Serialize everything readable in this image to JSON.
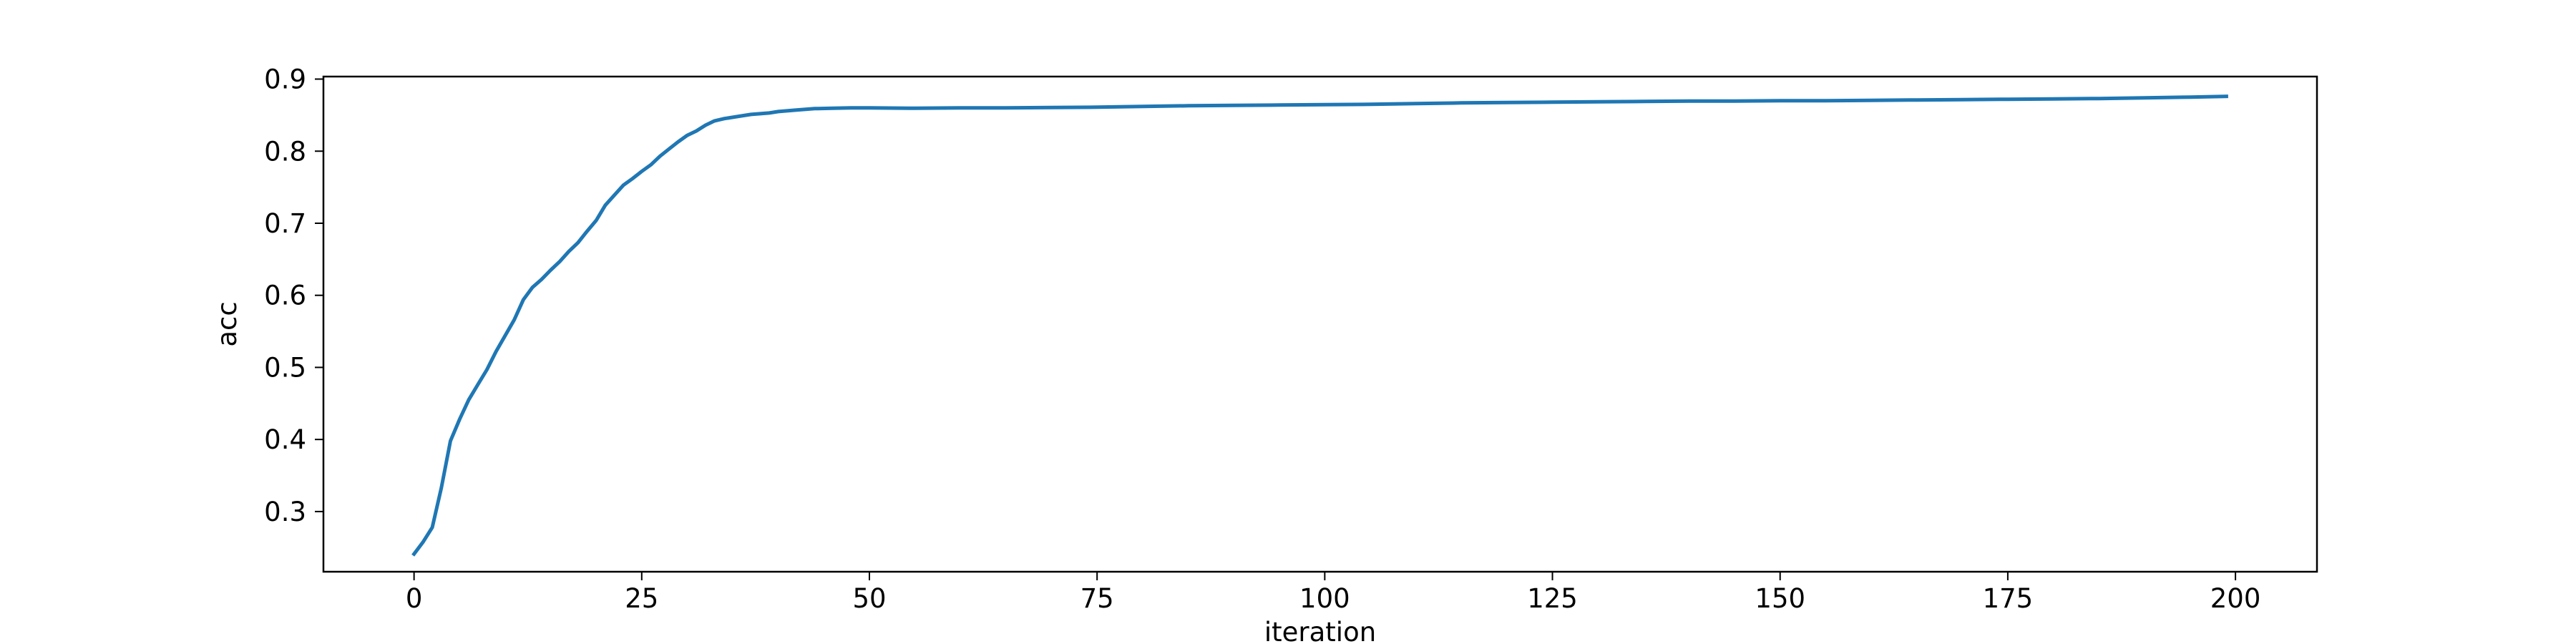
{
  "chart_data": {
    "type": "line",
    "title": "",
    "xlabel": "iteration",
    "ylabel": "acc",
    "xlim": [
      -9.95,
      208.95
    ],
    "ylim": [
      0.2165,
      0.9035
    ],
    "xticks": [
      0,
      25,
      50,
      75,
      100,
      125,
      150,
      175,
      200
    ],
    "yticks": [
      0.3,
      0.4,
      0.5,
      0.6,
      0.7,
      0.8,
      0.9
    ],
    "grid": false,
    "legend": "none",
    "line_color": "#1f77b4",
    "series": [
      {
        "color": "#1f77b4",
        "x": [
          0,
          1,
          2,
          3,
          4,
          5,
          6,
          7,
          8,
          9,
          10,
          11,
          12,
          13,
          14,
          15,
          16,
          17,
          18,
          19,
          20,
          21,
          22,
          23,
          24,
          25,
          26,
          27,
          28,
          29,
          30,
          31,
          32,
          33,
          34,
          35,
          36,
          37,
          38,
          39,
          40,
          42,
          44,
          46,
          48,
          50,
          55,
          60,
          65,
          70,
          75,
          80,
          85,
          90,
          95,
          100,
          105,
          110,
          115,
          120,
          125,
          130,
          135,
          140,
          145,
          150,
          155,
          160,
          165,
          170,
          175,
          180,
          185,
          190,
          195,
          199
        ],
        "y": [
          0.241,
          0.258,
          0.278,
          0.333,
          0.398,
          0.428,
          0.455,
          0.476,
          0.497,
          0.522,
          0.544,
          0.566,
          0.594,
          0.611,
          0.622,
          0.635,
          0.647,
          0.661,
          0.673,
          0.689,
          0.704,
          0.725,
          0.739,
          0.753,
          0.762,
          0.772,
          0.781,
          0.793,
          0.803,
          0.813,
          0.822,
          0.828,
          0.836,
          0.842,
          0.845,
          0.847,
          0.849,
          0.851,
          0.852,
          0.853,
          0.855,
          0.857,
          0.859,
          0.8595,
          0.86,
          0.86,
          0.8595,
          0.86,
          0.86,
          0.8605,
          0.861,
          0.862,
          0.863,
          0.8635,
          0.864,
          0.8645,
          0.865,
          0.866,
          0.867,
          0.8675,
          0.868,
          0.8685,
          0.869,
          0.8695,
          0.8695,
          0.87,
          0.87,
          0.8705,
          0.871,
          0.8715,
          0.872,
          0.8725,
          0.873,
          0.874,
          0.875,
          0.876
        ]
      }
    ]
  }
}
